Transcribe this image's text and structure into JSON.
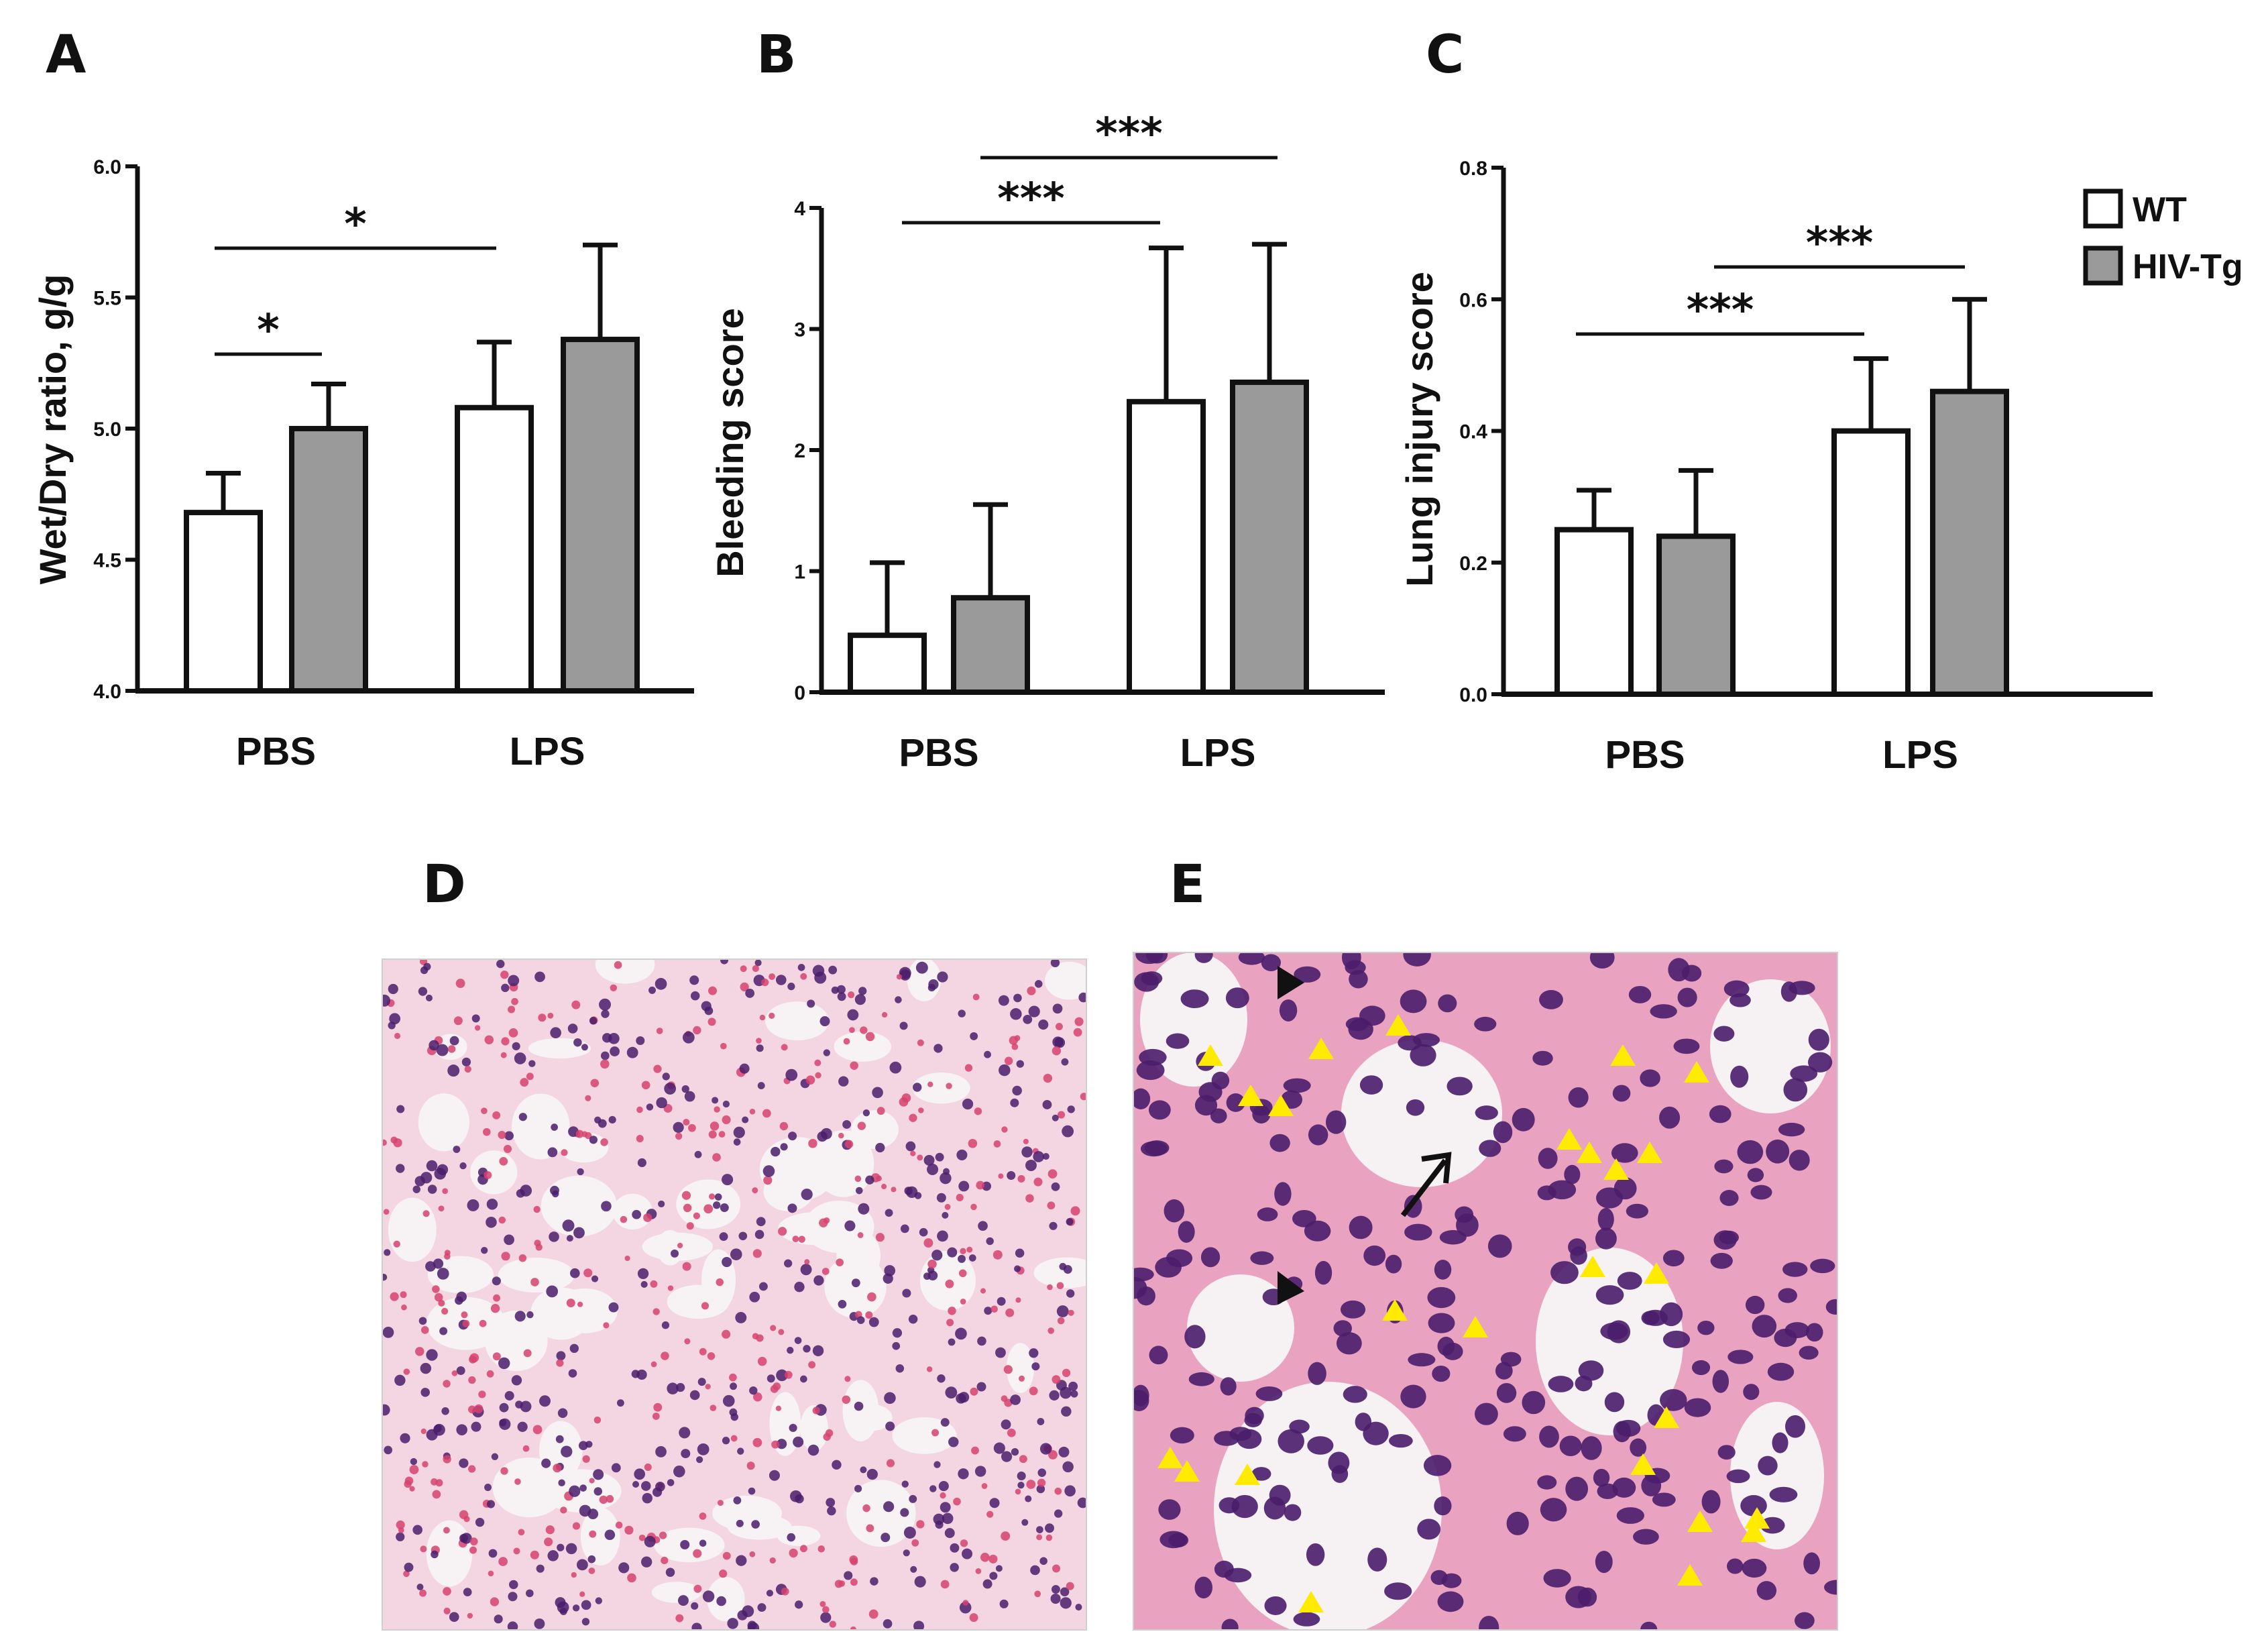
{
  "colors": {
    "wt_fill": "#ffffff",
    "hiv_fill": "#9a9a9a",
    "stroke": "#111111",
    "he_pink": "#e27aa6",
    "he_purple": "#4a1d6b",
    "arrowhead_yellow": "#ffeb00"
  },
  "legend": {
    "items": [
      {
        "label": "WT",
        "color": "#ffffff"
      },
      {
        "label": "HIV-Tg",
        "color": "#9a9a9a"
      }
    ]
  },
  "chart_data": [
    {
      "panel": "A",
      "type": "bar",
      "title": "",
      "categories": [
        "PBS",
        "LPS"
      ],
      "ylabel": "Wet/Dry ratio, g/g",
      "ylim": [
        4.0,
        6.0
      ],
      "yticks": [
        "4.0",
        "4.5",
        "5.0",
        "5.5",
        "6.0"
      ],
      "series": [
        {
          "name": "WT",
          "values": [
            4.68,
            5.08
          ],
          "errors": [
            0.15,
            0.25
          ]
        },
        {
          "name": "HIV-Tg",
          "values": [
            5.0,
            5.34
          ],
          "errors": [
            0.17,
            0.36
          ]
        }
      ],
      "significance": [
        {
          "label": "*",
          "from": [
            0,
            0
          ],
          "to": [
            0,
            1
          ]
        },
        {
          "label": "*",
          "from": [
            0,
            0
          ],
          "to": [
            1,
            0
          ]
        }
      ]
    },
    {
      "panel": "B",
      "type": "bar",
      "title": "",
      "categories": [
        "PBS",
        "LPS"
      ],
      "ylabel": "Bleeding score",
      "ylim": [
        0,
        4
      ],
      "yticks": [
        "0",
        "1",
        "2",
        "3",
        "4"
      ],
      "series": [
        {
          "name": "WT",
          "values": [
            0.47,
            2.4
          ],
          "errors": [
            0.6,
            1.27
          ]
        },
        {
          "name": "HIV-Tg",
          "values": [
            0.78,
            2.56
          ],
          "errors": [
            0.77,
            1.14
          ]
        }
      ],
      "significance": [
        {
          "label": "***",
          "from": [
            0,
            0
          ],
          "to": [
            1,
            0
          ]
        },
        {
          "label": "***",
          "from": [
            0,
            1
          ],
          "to": [
            1,
            1
          ]
        }
      ]
    },
    {
      "panel": "C",
      "type": "bar",
      "title": "",
      "categories": [
        "PBS",
        "LPS"
      ],
      "ylabel": "Lung injury score",
      "ylim": [
        0.0,
        0.8
      ],
      "yticks": [
        "0.0",
        "0.2",
        "0.4",
        "0.6",
        "0.8"
      ],
      "series": [
        {
          "name": "WT",
          "values": [
            0.25,
            0.4
          ],
          "errors": [
            0.06,
            0.11
          ]
        },
        {
          "name": "HIV-Tg",
          "values": [
            0.24,
            0.46
          ],
          "errors": [
            0.1,
            0.14
          ]
        }
      ],
      "significance": [
        {
          "label": "***",
          "from": [
            0,
            0
          ],
          "to": [
            1,
            0
          ]
        },
        {
          "label": "***",
          "from": [
            0,
            1
          ],
          "to": [
            1,
            1
          ]
        }
      ]
    }
  ],
  "panels": {
    "A": "A",
    "B": "B",
    "C": "C",
    "D": "D",
    "E": "E"
  },
  "micrographs": {
    "D": {
      "stain": "H&E"
    },
    "E": {
      "stain": "H&E"
    }
  }
}
